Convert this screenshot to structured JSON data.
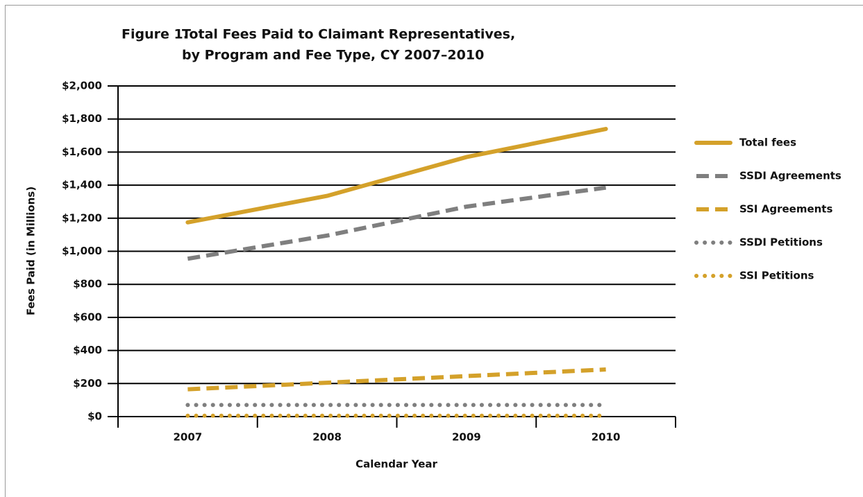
{
  "chart_data": {
    "type": "line",
    "figure_label": "Figure 1.",
    "title": [
      "Total Fees Paid to Claimant Representatives,",
      "by Program and Fee Type, CY 2007–2010"
    ],
    "x_label": "Calendar Year",
    "y_label": "Fees Paid (in Millions)",
    "categories": [
      "2007",
      "2008",
      "2009",
      "2010"
    ],
    "ylim": [
      0,
      2000
    ],
    "yticks": [
      {
        "value": 0,
        "label": "$0"
      },
      {
        "value": 200,
        "label": "$200"
      },
      {
        "value": 400,
        "label": "$400"
      },
      {
        "value": 600,
        "label": "$600"
      },
      {
        "value": 800,
        "label": "$800"
      },
      {
        "value": 1000,
        "label": "$1,000"
      },
      {
        "value": 1200,
        "label": "$1,200"
      },
      {
        "value": 1400,
        "label": "$1,400"
      },
      {
        "value": 1600,
        "label": "$1,600"
      },
      {
        "value": 1800,
        "label": "$1,800"
      },
      {
        "value": 2000,
        "label": "$2,000"
      }
    ],
    "grid": true,
    "legend": "right",
    "series": [
      {
        "name": "Total fees",
        "color": "#d4a12a",
        "style": "solid",
        "values": [
          1175,
          1335,
          1570,
          1740
        ]
      },
      {
        "name": "SSDI Agreements",
        "color": "#7f7f7f",
        "style": "dashed",
        "values": [
          955,
          1095,
          1270,
          1385
        ]
      },
      {
        "name": "SSI Agreements",
        "color": "#d4a12a",
        "style": "dashed",
        "values": [
          165,
          205,
          245,
          285
        ]
      },
      {
        "name": "SSDI Petitions",
        "color": "#7f7f7f",
        "style": "dotted",
        "values": [
          70,
          70,
          70,
          70
        ]
      },
      {
        "name": "SSI Petitions",
        "color": "#d4a12a",
        "style": "dotted",
        "values": [
          5,
          5,
          5,
          5
        ]
      }
    ]
  }
}
